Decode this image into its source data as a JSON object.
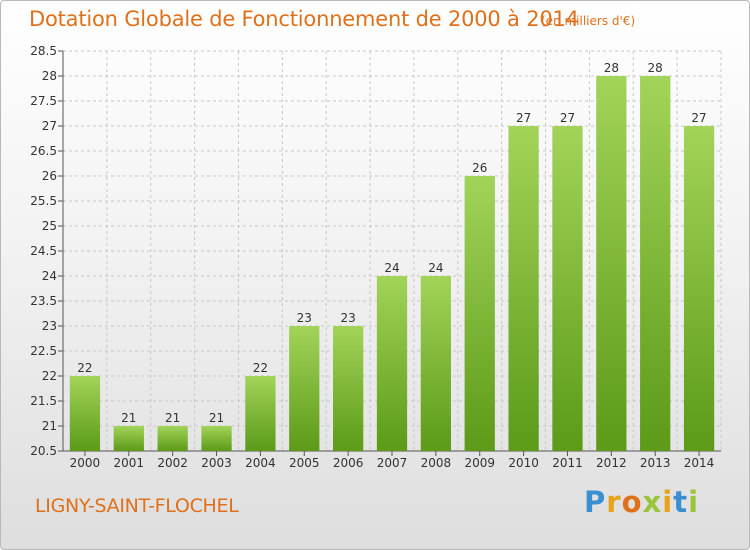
{
  "chart_data": {
    "type": "bar",
    "title": "Dotation Globale de Fonctionnement de 2000 à 2014",
    "subtitle": "(en milliers d'€)",
    "categories": [
      "2000",
      "2001",
      "2002",
      "2003",
      "2004",
      "2005",
      "2006",
      "2007",
      "2008",
      "2009",
      "2010",
      "2011",
      "2012",
      "2013",
      "2014"
    ],
    "values": [
      22,
      21,
      21,
      21,
      22,
      23,
      23,
      24,
      24,
      26,
      27,
      27,
      28,
      28,
      27
    ],
    "data_labels": [
      "22",
      "21",
      "21",
      "21",
      "22",
      "23",
      "23",
      "24",
      "24",
      "26",
      "27",
      "27",
      "28",
      "28",
      "27"
    ],
    "ylim": [
      20.5,
      28.5
    ],
    "yticks": [
      "20.5",
      "21",
      "21.5",
      "22",
      "22.5",
      "23",
      "23.5",
      "24",
      "24.5",
      "25",
      "25.5",
      "26",
      "26.5",
      "27",
      "27.5",
      "28",
      "28.5"
    ],
    "xlabel": "",
    "ylabel": "",
    "grid": true,
    "bar_color": "#7cb82f"
  },
  "footer": {
    "place_name": "LIGNY-SAINT-FLOCHEL",
    "logo_text": "Proxiti"
  }
}
